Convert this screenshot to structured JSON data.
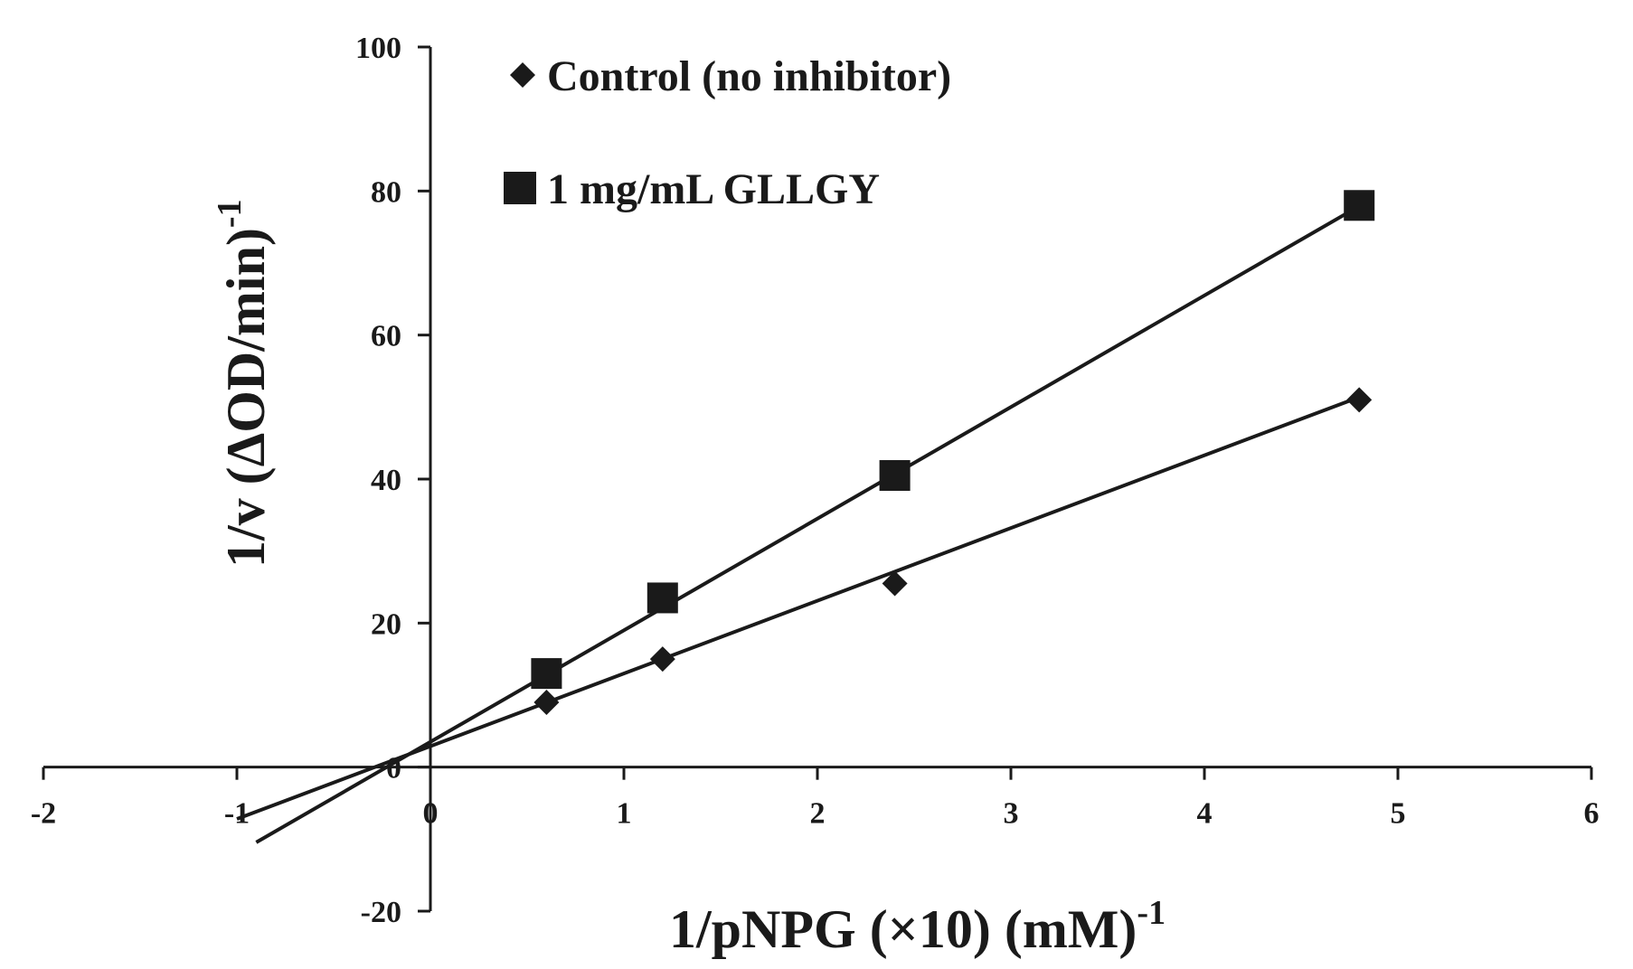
{
  "chart_data": {
    "type": "line",
    "title": "",
    "xlabel": "1/pNPG (×10) (mM)",
    "xlabel_superscript": "-1",
    "ylabel": "1/v (ΔOD/min)",
    "ylabel_superscript": "-1",
    "xlim": [
      -2,
      6
    ],
    "ylim": [
      -20,
      100
    ],
    "x_ticks": [
      "-2",
      "-1",
      "0",
      "1",
      "2",
      "3",
      "4",
      "5",
      "6"
    ],
    "y_ticks": [
      "-20",
      "0",
      "20",
      "40",
      "60",
      "80",
      "100"
    ],
    "legend_position": "top-left",
    "series": [
      {
        "name": "Control (no inhibitor)",
        "marker": "diamond",
        "color": "#1a1a1a",
        "points": [
          {
            "x": 0.6,
            "y": 9
          },
          {
            "x": 1.2,
            "y": 15
          },
          {
            "x": 2.4,
            "y": 25.5
          },
          {
            "x": 4.8,
            "y": 51
          }
        ],
        "trendline": {
          "slope": 10.1,
          "intercept": 2.9,
          "x_start": -1.0,
          "x_end": 4.8
        }
      },
      {
        "name": "1 mg/mL GLLGY",
        "marker": "square",
        "color": "#1a1a1a",
        "points": [
          {
            "x": 0.6,
            "y": 13
          },
          {
            "x": 1.2,
            "y": 23.5
          },
          {
            "x": 2.4,
            "y": 40.5
          },
          {
            "x": 4.8,
            "y": 78
          }
        ],
        "trendline": {
          "slope": 15.5,
          "intercept": 3.5,
          "x_start": -0.9,
          "x_end": 4.8
        }
      }
    ]
  }
}
